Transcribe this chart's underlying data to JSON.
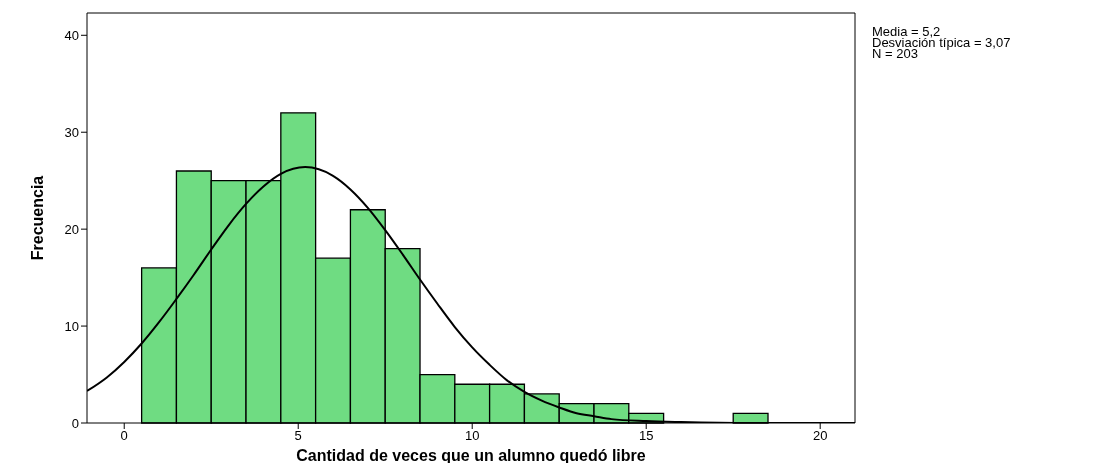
{
  "chart_data": {
    "type": "histogram",
    "xlabel": "Cantidad de veces que un alumno quedó libre",
    "ylabel": "Frecuencia",
    "bins": [
      0.5,
      1.5,
      2.5,
      3.5,
      4.5,
      5.5,
      6.5,
      7.5,
      8.5,
      9.5,
      10.5,
      11.5,
      12.5,
      13.5,
      14.5,
      15.5,
      16.5,
      17.5,
      18.5
    ],
    "values": [
      16,
      26,
      25,
      25,
      32,
      17,
      22,
      18,
      5,
      4,
      4,
      3,
      2,
      2,
      1,
      0,
      0,
      1
    ],
    "color": "#6fdc82",
    "series": [
      {
        "type": "line",
        "color": "#000000",
        "x": [
          -1.07,
          -0.5,
          0,
          0.5,
          1,
          1.5,
          2,
          2.5,
          3,
          3.5,
          4,
          4.5,
          5.2,
          6,
          6.5,
          7,
          7.5,
          8,
          8.5,
          9,
          9.5,
          10,
          10.5,
          11,
          11.5,
          12,
          12.5,
          13,
          13.5,
          14,
          15,
          16,
          18,
          21
        ],
        "values": [
          3.3,
          4.7,
          6.3,
          8.2,
          10.4,
          12.8,
          15.3,
          17.9,
          20.4,
          22.6,
          24.4,
          25.7,
          26.4,
          25.5,
          24.1,
          22.2,
          19.9,
          17.4,
          14.8,
          12.3,
          9.9,
          7.8,
          6.0,
          4.4,
          3.2,
          2.3,
          1.6,
          1.0,
          0.7,
          0.4,
          0.2,
          0.1,
          0,
          0
        ]
      }
    ],
    "marker": "none",
    "xlim": [
      -1.07,
      21
    ],
    "ylim": [
      0,
      42.3
    ],
    "xticks": [
      0,
      5,
      10,
      15,
      20
    ],
    "yticks": [
      0,
      10,
      20,
      30,
      40
    ],
    "annotations": [
      "Media = 5,2",
      "Desviación típica = 3,07",
      "N = 203"
    ]
  }
}
